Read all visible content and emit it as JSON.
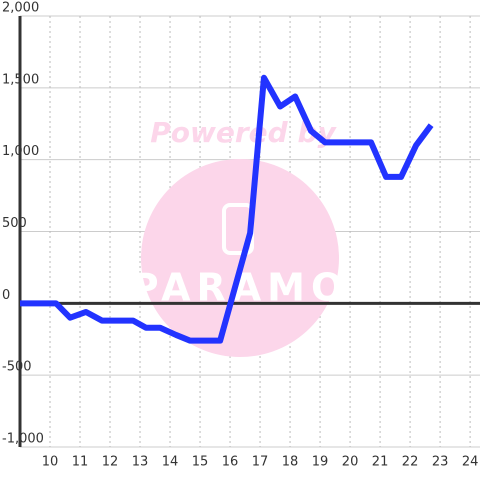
{
  "chart_data": {
    "type": "line",
    "x": [
      9,
      10.2,
      10.67,
      11.2,
      11.73,
      12.77,
      13.2,
      13.67,
      14.2,
      14.67,
      15.67,
      16.67,
      17.13,
      17.67,
      18.17,
      18.7,
      19.17,
      20.7,
      21.2,
      21.7,
      22.2,
      22.7
    ],
    "series": [
      {
        "color": "#2233ff",
        "values": [
          0,
          0,
          -100,
          -60,
          -120,
          -120,
          -170,
          -170,
          -220,
          -260,
          -260,
          490,
          1570,
          1370,
          1440,
          1200,
          1120,
          1120,
          880,
          880,
          1100,
          1240
        ]
      }
    ],
    "xlim": [
      9,
      24.33
    ],
    "xticks": [
      10,
      11,
      12,
      13,
      14,
      15,
      16,
      17,
      18,
      19,
      20,
      21,
      22,
      23,
      24
    ],
    "ylim": [
      -1000,
      2000
    ],
    "yticks": [
      {
        "value": -1000,
        "label": "-1,000"
      },
      -500,
      0,
      500,
      {
        "value": 1000,
        "label": "1,000"
      },
      {
        "value": 1500,
        "label": "1,500"
      },
      {
        "value": 2000,
        "label": "2,000"
      }
    ],
    "grid": true,
    "annotations": [
      "Powered by",
      "PARAMO"
    ]
  }
}
